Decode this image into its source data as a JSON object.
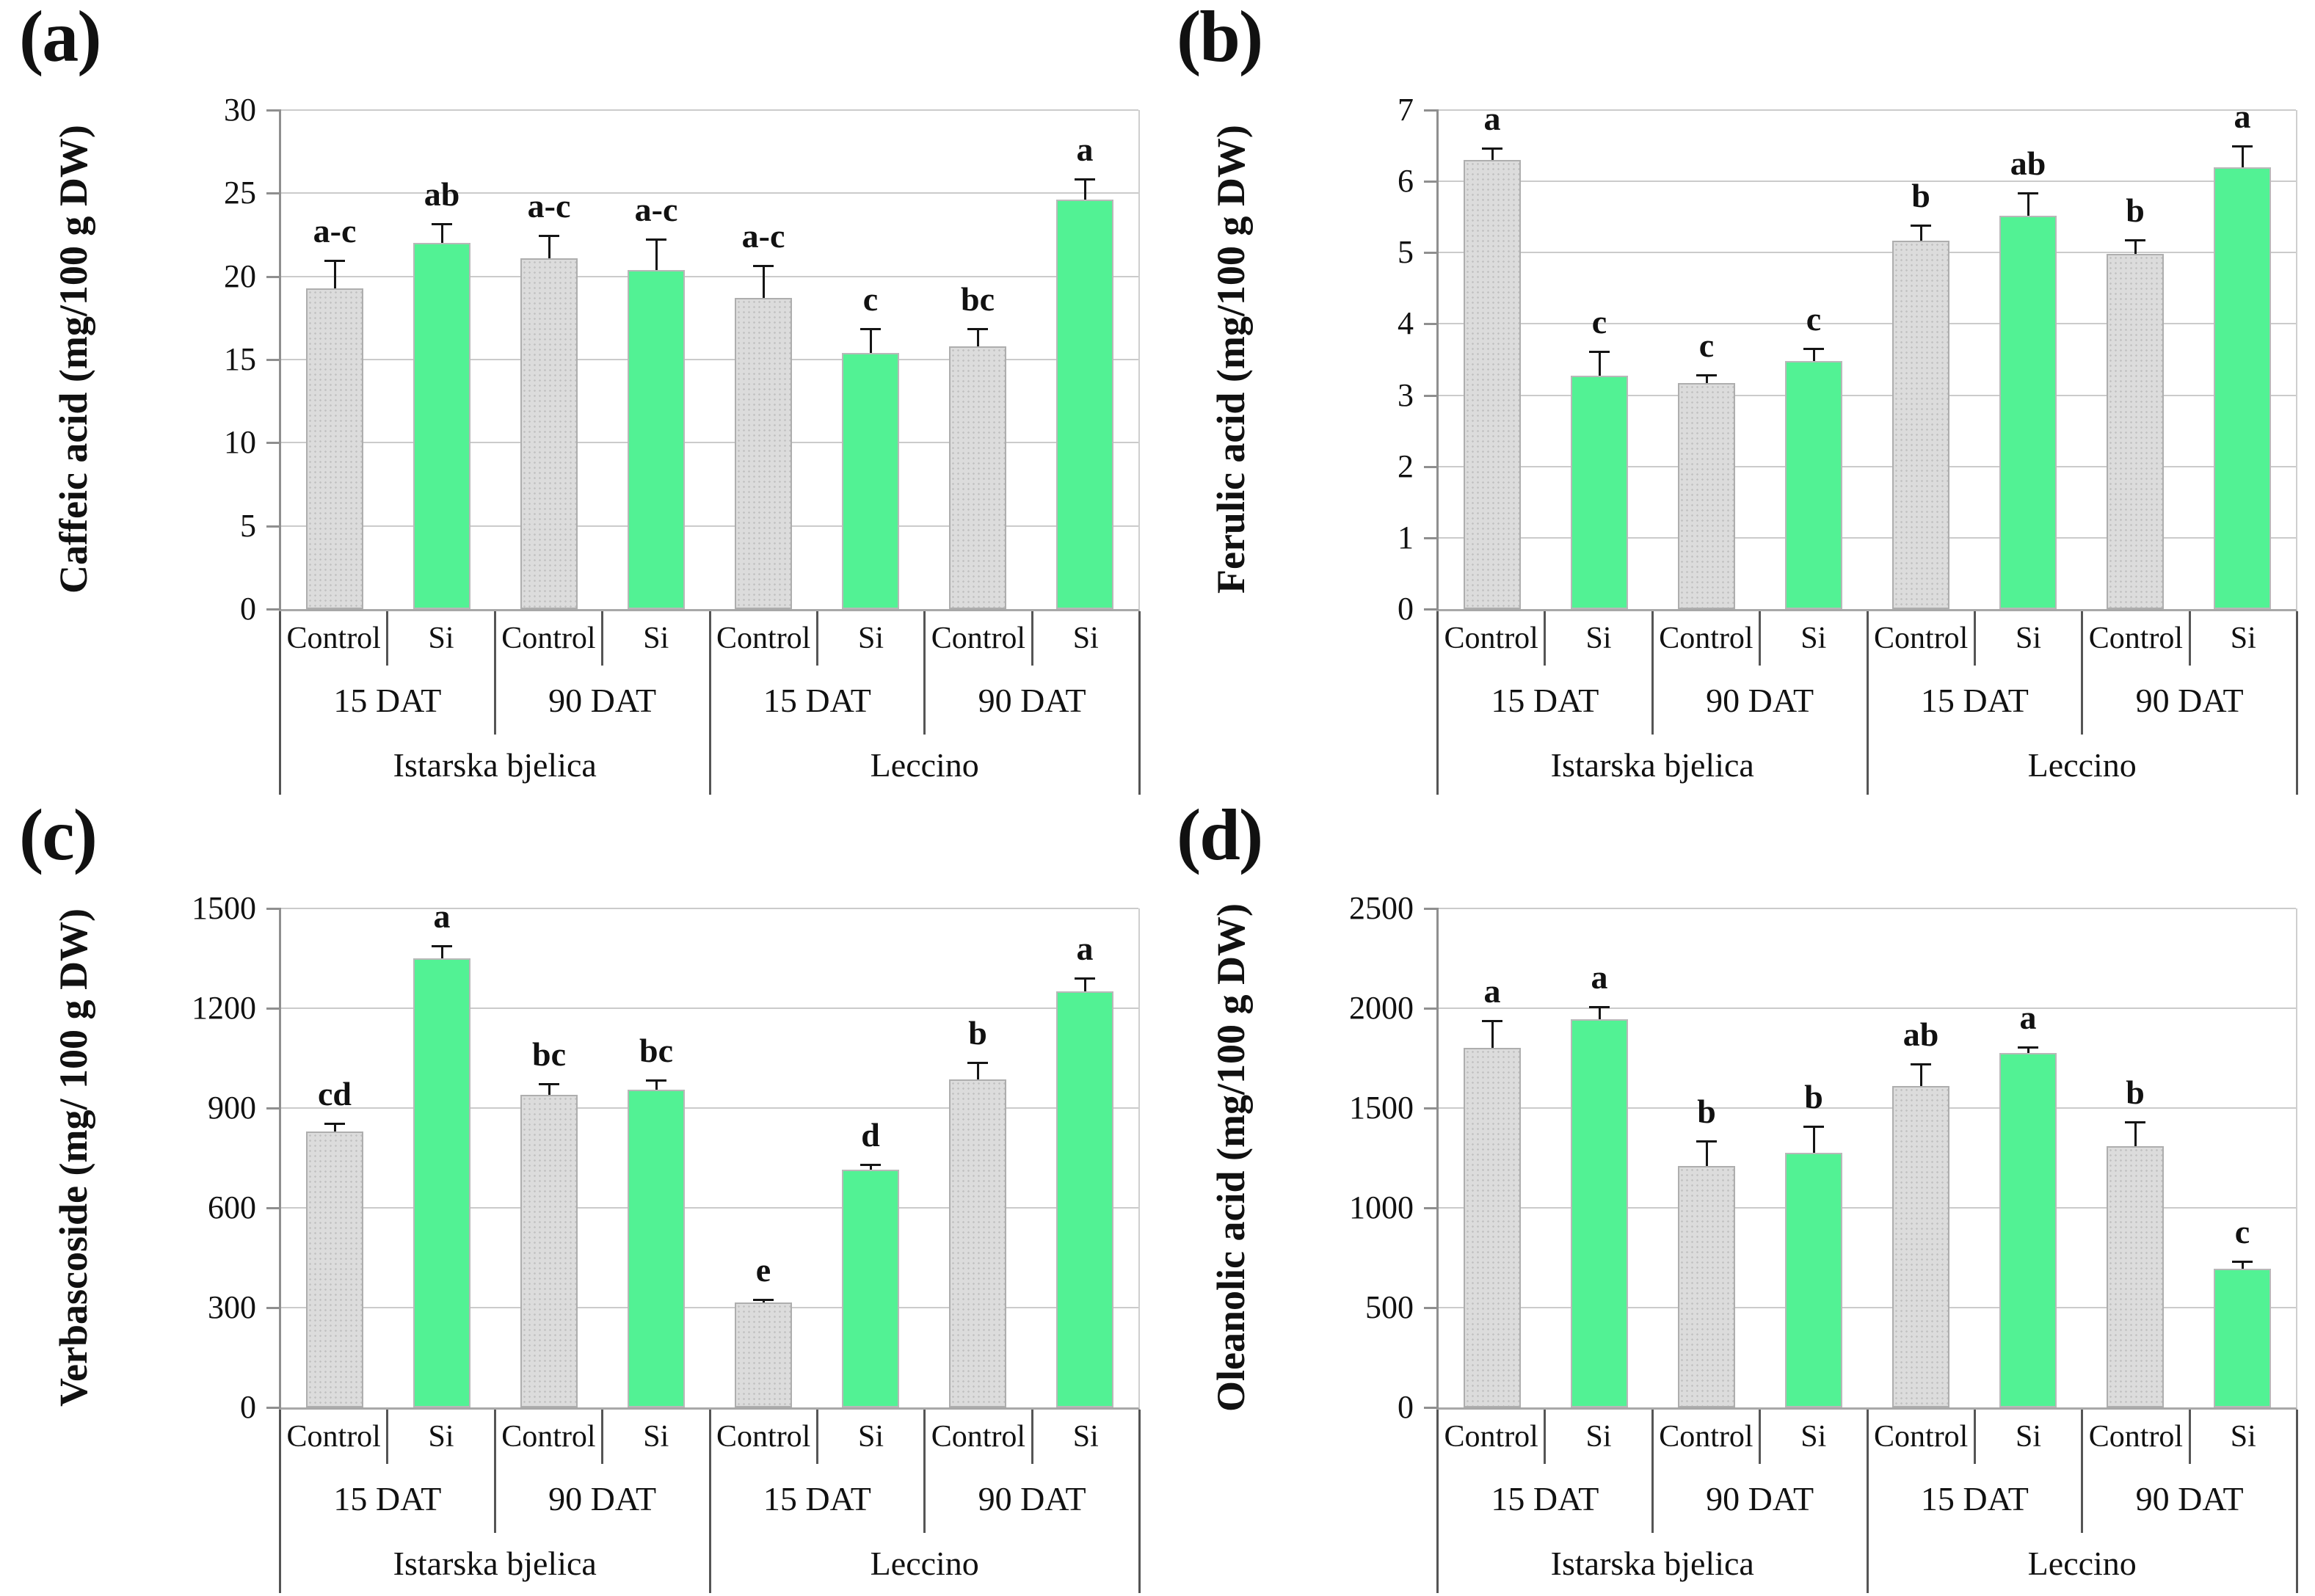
{
  "figure": {
    "panel_labels": [
      "(a)",
      "(b)",
      "(c)",
      "(d)"
    ]
  },
  "colors": {
    "control_fill": "#dcdcdc",
    "si_fill": "#52f294",
    "gridline": "#cbcbcb",
    "axis": "#8f8f8f",
    "error_bar": "#151515"
  },
  "axis_structure": {
    "treatments": [
      "Control",
      "Si"
    ],
    "times": [
      "15 DAT",
      "90 DAT"
    ],
    "cultivars": [
      "Istarska bjelica",
      "Leccino"
    ]
  },
  "chart_data": [
    {
      "type": "bar",
      "panel": "(a)",
      "ylabel": "Caffeic acid (mg/100 g DW)",
      "ylim": [
        0,
        30
      ],
      "ystep": 5,
      "grid": true,
      "legend": "none",
      "categories": [
        {
          "cultivar": "Istarska bjelica",
          "time": "15 DAT",
          "treatment": "Control"
        },
        {
          "cultivar": "Istarska bjelica",
          "time": "15 DAT",
          "treatment": "Si"
        },
        {
          "cultivar": "Istarska bjelica",
          "time": "90 DAT",
          "treatment": "Control"
        },
        {
          "cultivar": "Istarska bjelica",
          "time": "90 DAT",
          "treatment": "Si"
        },
        {
          "cultivar": "Leccino",
          "time": "15 DAT",
          "treatment": "Control"
        },
        {
          "cultivar": "Leccino",
          "time": "15 DAT",
          "treatment": "Si"
        },
        {
          "cultivar": "Leccino",
          "time": "90 DAT",
          "treatment": "Control"
        },
        {
          "cultivar": "Leccino",
          "time": "90 DAT",
          "treatment": "Si"
        }
      ],
      "values": [
        19.3,
        22.0,
        21.1,
        20.4,
        18.7,
        15.4,
        15.8,
        24.6
      ],
      "errors": [
        1.6,
        1.1,
        1.3,
        1.8,
        1.9,
        1.4,
        1.0,
        1.2
      ],
      "letters": [
        "a-c",
        "ab",
        "a-c",
        "a-c",
        "a-c",
        "c",
        "bc",
        "a"
      ]
    },
    {
      "type": "bar",
      "panel": "(b)",
      "ylabel": "Ferulic acid (mg/100 g DW)",
      "ylim": [
        0,
        7
      ],
      "ystep": 1,
      "grid": true,
      "legend": "none",
      "categories": [
        {
          "cultivar": "Istarska bjelica",
          "time": "15 DAT",
          "treatment": "Control"
        },
        {
          "cultivar": "Istarska bjelica",
          "time": "15 DAT",
          "treatment": "Si"
        },
        {
          "cultivar": "Istarska bjelica",
          "time": "90 DAT",
          "treatment": "Control"
        },
        {
          "cultivar": "Istarska bjelica",
          "time": "90 DAT",
          "treatment": "Si"
        },
        {
          "cultivar": "Leccino",
          "time": "15 DAT",
          "treatment": "Control"
        },
        {
          "cultivar": "Leccino",
          "time": "15 DAT",
          "treatment": "Si"
        },
        {
          "cultivar": "Leccino",
          "time": "90 DAT",
          "treatment": "Control"
        },
        {
          "cultivar": "Leccino",
          "time": "90 DAT",
          "treatment": "Si"
        }
      ],
      "values": [
        6.3,
        3.27,
        3.17,
        3.48,
        5.17,
        5.52,
        4.98,
        6.2
      ],
      "errors": [
        0.15,
        0.33,
        0.1,
        0.16,
        0.2,
        0.31,
        0.19,
        0.29
      ],
      "letters": [
        "a",
        "c",
        "c",
        "c",
        "b",
        "ab",
        "b",
        "a"
      ]
    },
    {
      "type": "bar",
      "panel": "(c)",
      "ylabel": "Verbascoside (mg/ 100 g DW)",
      "ylim": [
        0,
        1500
      ],
      "ystep": 300,
      "grid": true,
      "legend": "none",
      "categories": [
        {
          "cultivar": "Istarska bjelica",
          "time": "15 DAT",
          "treatment": "Control"
        },
        {
          "cultivar": "Istarska bjelica",
          "time": "15 DAT",
          "treatment": "Si"
        },
        {
          "cultivar": "Istarska bjelica",
          "time": "90 DAT",
          "treatment": "Control"
        },
        {
          "cultivar": "Istarska bjelica",
          "time": "90 DAT",
          "treatment": "Si"
        },
        {
          "cultivar": "Leccino",
          "time": "15 DAT",
          "treatment": "Control"
        },
        {
          "cultivar": "Leccino",
          "time": "15 DAT",
          "treatment": "Si"
        },
        {
          "cultivar": "Leccino",
          "time": "90 DAT",
          "treatment": "Control"
        },
        {
          "cultivar": "Leccino",
          "time": "90 DAT",
          "treatment": "Si"
        }
      ],
      "values": [
        830,
        1350,
        940,
        955,
        315,
        715,
        985,
        1250
      ],
      "errors": [
        22,
        36,
        30,
        27,
        8,
        14,
        50,
        38
      ],
      "letters": [
        "cd",
        "a",
        "bc",
        "bc",
        "e",
        "d",
        "b",
        "a"
      ]
    },
    {
      "type": "bar",
      "panel": "(d)",
      "ylabel": "Oleanolic acid (mg/100 g DW)",
      "ylim": [
        0,
        2500
      ],
      "ystep": 500,
      "grid": true,
      "legend": "none",
      "categories": [
        {
          "cultivar": "Istarska bjelica",
          "time": "15 DAT",
          "treatment": "Control"
        },
        {
          "cultivar": "Istarska bjelica",
          "time": "15 DAT",
          "treatment": "Si"
        },
        {
          "cultivar": "Istarska bjelica",
          "time": "90 DAT",
          "treatment": "Control"
        },
        {
          "cultivar": "Istarska bjelica",
          "time": "90 DAT",
          "treatment": "Si"
        },
        {
          "cultivar": "Leccino",
          "time": "15 DAT",
          "treatment": "Control"
        },
        {
          "cultivar": "Leccino",
          "time": "15 DAT",
          "treatment": "Si"
        },
        {
          "cultivar": "Leccino",
          "time": "90 DAT",
          "treatment": "Control"
        },
        {
          "cultivar": "Leccino",
          "time": "90 DAT",
          "treatment": "Si"
        }
      ],
      "values": [
        1800,
        1945,
        1210,
        1275,
        1610,
        1775,
        1310,
        695
      ],
      "errors": [
        135,
        57,
        120,
        130,
        108,
        28,
        118,
        33
      ],
      "letters": [
        "a",
        "a",
        "b",
        "b",
        "ab",
        "a",
        "b",
        "c"
      ]
    }
  ]
}
